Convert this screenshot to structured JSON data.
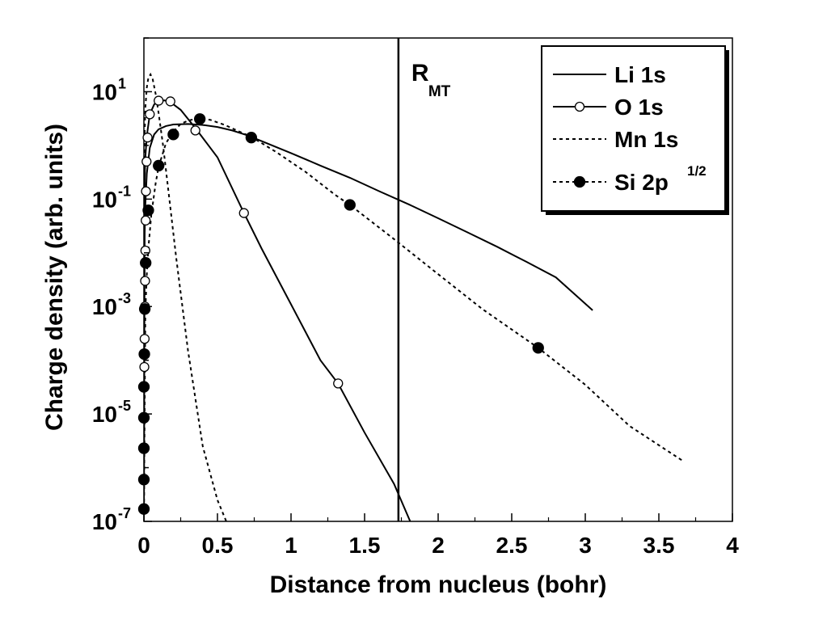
{
  "chart_data": {
    "type": "line",
    "title": "",
    "xlabel": "Distance from nucleus (bohr)",
    "ylabel": "Charge density (arb. units)",
    "xlim": [
      0,
      4
    ],
    "ylim": [
      1e-07,
      100
    ],
    "yscale": "log",
    "x_ticks": [
      {
        "value": 0,
        "label": "0"
      },
      {
        "value": 0.5,
        "label": "0.5"
      },
      {
        "value": 1,
        "label": "1"
      },
      {
        "value": 1.5,
        "label": "1.5"
      },
      {
        "value": 2,
        "label": "2"
      },
      {
        "value": 2.5,
        "label": "2.5"
      },
      {
        "value": 3,
        "label": "3"
      },
      {
        "value": 3.5,
        "label": "3.5"
      },
      {
        "value": 4,
        "label": "4"
      }
    ],
    "y_ticks": [
      {
        "value": 10,
        "base": "10",
        "exp": "1"
      },
      {
        "value": 0.1,
        "base": "10",
        "exp": "-1"
      },
      {
        "value": 0.001,
        "base": "10",
        "exp": "-3"
      },
      {
        "value": 1e-05,
        "base": "10",
        "exp": "-5"
      },
      {
        "value": 1e-07,
        "base": "10",
        "exp": "-7"
      }
    ],
    "grid": false,
    "legend_position": "top-right",
    "annotation": {
      "text": "R",
      "subscript": "MT",
      "x": 1.73
    },
    "series": [
      {
        "name": "Li 1s",
        "line_style": "solid",
        "marker": "none",
        "curve": [
          [
            0,
            1e-07
          ],
          [
            0.005,
            0.02
          ],
          [
            0.01,
            0.08
          ],
          [
            0.02,
            0.3
          ],
          [
            0.04,
            0.9
          ],
          [
            0.07,
            1.6
          ],
          [
            0.1,
            2.0
          ],
          [
            0.15,
            2.3
          ],
          [
            0.2,
            2.45
          ],
          [
            0.3,
            2.5
          ],
          [
            0.4,
            2.4
          ],
          [
            0.5,
            2.2
          ],
          [
            0.6,
            1.9
          ],
          [
            0.7,
            1.55
          ],
          [
            0.8,
            1.2
          ],
          [
            1.0,
            0.72
          ],
          [
            1.2,
            0.42
          ],
          [
            1.4,
            0.25
          ],
          [
            1.6,
            0.14
          ],
          [
            1.8,
            0.08
          ],
          [
            2.0,
            0.044
          ],
          [
            2.2,
            0.024
          ],
          [
            2.4,
            0.013
          ],
          [
            2.6,
            0.0068
          ],
          [
            2.8,
            0.0035
          ],
          [
            3.05,
            0.00085
          ]
        ],
        "markers": []
      },
      {
        "name": "O 1s",
        "line_style": "solid",
        "marker": "open-circle",
        "curve": [
          [
            0,
            1e-07
          ],
          [
            0.005,
            0.2
          ],
          [
            0.01,
            0.6
          ],
          [
            0.02,
            1.5
          ],
          [
            0.04,
            3.8
          ],
          [
            0.07,
            5.8
          ],
          [
            0.1,
            6.7
          ],
          [
            0.14,
            6.9
          ],
          [
            0.18,
            6.4
          ],
          [
            0.25,
            4.6
          ],
          [
            0.35,
            2.1
          ],
          [
            0.5,
            0.6
          ],
          [
            0.68,
            0.055
          ],
          [
            0.8,
            0.012
          ],
          [
            1.0,
            0.0011
          ],
          [
            1.2,
            0.0001
          ],
          [
            1.32,
            3.7e-05
          ],
          [
            1.5,
            4.5e-06
          ],
          [
            1.7,
            5e-07
          ],
          [
            1.81,
            1e-07
          ]
        ],
        "markers": [
          [
            0.003,
            7.5e-05
          ],
          [
            0.005,
            0.00025
          ],
          [
            0.007,
            0.001
          ],
          [
            0.008,
            0.003
          ],
          [
            0.01,
            0.011
          ],
          [
            0.012,
            0.04
          ],
          [
            0.014,
            0.14
          ],
          [
            0.018,
            0.5
          ],
          [
            0.025,
            1.4
          ],
          [
            0.04,
            3.8
          ],
          [
            0.1,
            6.8
          ],
          [
            0.18,
            6.6
          ],
          [
            0.35,
            1.9
          ],
          [
            0.68,
            0.055
          ],
          [
            1.32,
            3.7e-05
          ]
        ]
      },
      {
        "name": "Mn 1s",
        "line_style": "dotted",
        "marker": "none",
        "curve": [
          [
            0,
            1e-07
          ],
          [
            0.005,
            1.5
          ],
          [
            0.01,
            5
          ],
          [
            0.02,
            12
          ],
          [
            0.03,
            18
          ],
          [
            0.045,
            21
          ],
          [
            0.06,
            17
          ],
          [
            0.08,
            9
          ],
          [
            0.1,
            4
          ],
          [
            0.13,
            1.0
          ],
          [
            0.17,
            0.12
          ],
          [
            0.22,
            0.008
          ],
          [
            0.3,
            0.00015
          ],
          [
            0.4,
            2.5e-06
          ],
          [
            0.5,
            2.5e-07
          ],
          [
            0.56,
            1e-07
          ]
        ],
        "markers": []
      },
      {
        "name": "Si 2p",
        "name_sup": "1/2",
        "line_style": "dotted",
        "marker": "filled-circle",
        "curve": [
          [
            0,
            1e-07
          ],
          [
            0.01,
            0.0008
          ],
          [
            0.02,
            0.004
          ],
          [
            0.03,
            0.012
          ],
          [
            0.05,
            0.05
          ],
          [
            0.08,
            0.2
          ],
          [
            0.1,
            0.4
          ],
          [
            0.15,
            1.1
          ],
          [
            0.2,
            1.8
          ],
          [
            0.25,
            2.5
          ],
          [
            0.3,
            2.9
          ],
          [
            0.37,
            3.2
          ],
          [
            0.45,
            3.0
          ],
          [
            0.55,
            2.4
          ],
          [
            0.65,
            1.8
          ],
          [
            0.73,
            1.45
          ],
          [
            0.9,
            0.75
          ],
          [
            1.1,
            0.32
          ],
          [
            1.3,
            0.12
          ],
          [
            1.4,
            0.078
          ],
          [
            1.7,
            0.018
          ],
          [
            2.0,
            0.004
          ],
          [
            2.3,
            0.0009
          ],
          [
            2.68,
            0.00017
          ],
          [
            3.0,
            3.5e-05
          ],
          [
            3.3,
            6e-06
          ],
          [
            3.67,
            1.3e-06
          ]
        ],
        "markers": [
          [
            0,
            1.7e-07
          ],
          [
            0,
            6e-07
          ],
          [
            0,
            2.3e-06
          ],
          [
            0,
            8.5e-06
          ],
          [
            0,
            3.2e-05
          ],
          [
            0.003,
            0.00013
          ],
          [
            0.006,
            0.0009
          ],
          [
            0.012,
            0.0065
          ],
          [
            0.03,
            0.062
          ],
          [
            0.1,
            0.42
          ],
          [
            0.2,
            1.6
          ],
          [
            0.38,
            3.1
          ],
          [
            0.73,
            1.4
          ],
          [
            1.4,
            0.078
          ],
          [
            2.68,
            0.00017
          ]
        ]
      }
    ]
  }
}
